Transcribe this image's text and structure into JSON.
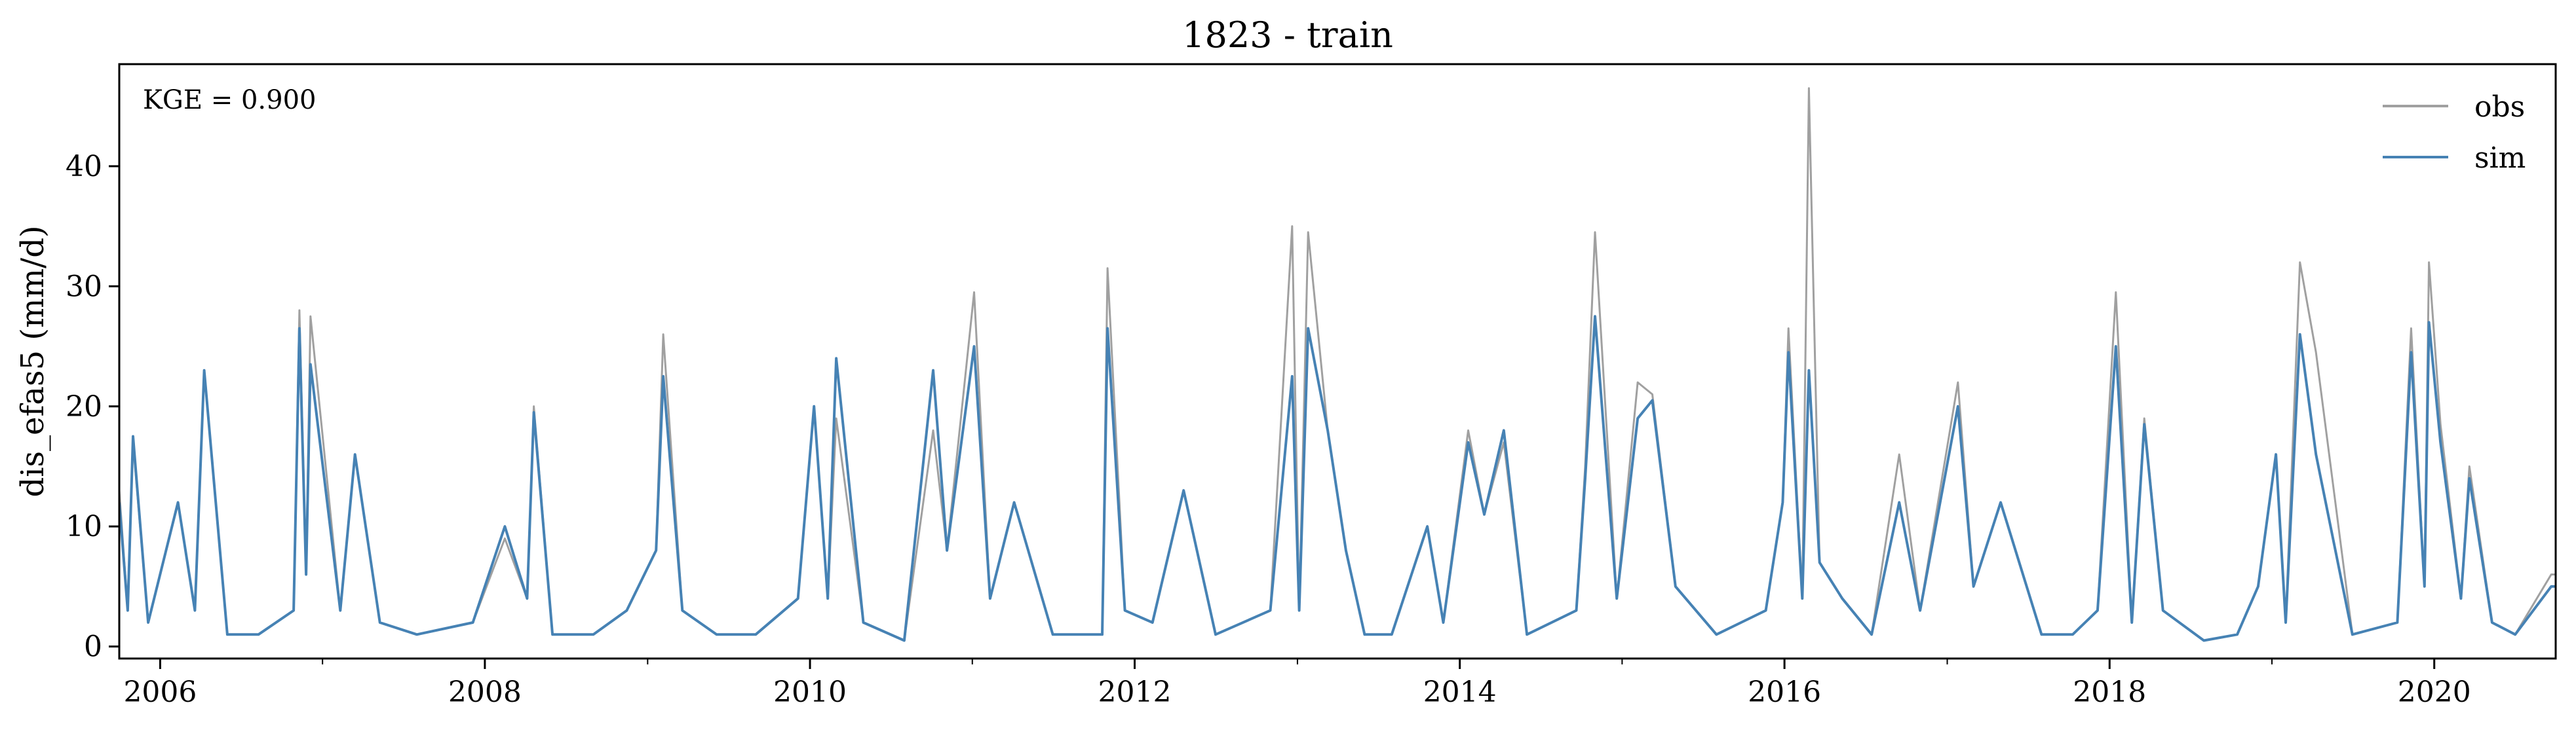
{
  "chart_data": {
    "type": "line",
    "title": "1823 - train",
    "xlabel": "",
    "ylabel": "dis_efas5 (mm/d)",
    "annotation": "KGE = 0.900",
    "legend_position": "top-right",
    "grid": false,
    "xlim": [
      "2005-10-01",
      "2020-09-30"
    ],
    "ylim": [
      -1,
      48.5
    ],
    "x_ticks": [
      "2006",
      "2008",
      "2010",
      "2012",
      "2014",
      "2016",
      "2018",
      "2020"
    ],
    "y_ticks": [
      "0",
      "10",
      "20",
      "30",
      "40"
    ],
    "y_tick_values": [
      0,
      10,
      20,
      30,
      40
    ],
    "series": [
      {
        "name": "obs",
        "color": "#a0a0a0",
        "x": [
          "2005-10-01",
          "2005-10-20",
          "2005-11-01",
          "2005-12-05",
          "2006-02-10",
          "2006-03-20",
          "2006-04-10",
          "2006-06-01",
          "2006-08-10",
          "2006-10-28",
          "2006-11-10",
          "2006-11-25",
          "2006-12-05",
          "2007-02-10",
          "2007-03-15",
          "2007-05-10",
          "2007-08-01",
          "2007-12-05",
          "2008-02-15",
          "2008-04-05",
          "2008-04-20",
          "2008-06-01",
          "2008-09-01",
          "2008-11-15",
          "2009-01-20",
          "2009-02-05",
          "2009-03-20",
          "2009-06-05",
          "2009-09-01",
          "2009-12-05",
          "2010-01-10",
          "2010-02-10",
          "2010-03-01",
          "2010-05-01",
          "2010-08-01",
          "2010-10-05",
          "2010-11-05",
          "2011-01-05",
          "2011-02-10",
          "2011-04-05",
          "2011-07-01",
          "2011-10-20",
          "2011-11-01",
          "2011-12-10",
          "2012-02-10",
          "2012-04-20",
          "2012-07-01",
          "2012-11-01",
          "2012-12-20",
          "2013-01-05",
          "2013-01-25",
          "2013-03-10",
          "2013-04-20",
          "2013-06-01",
          "2013-08-01",
          "2013-10-20",
          "2013-11-25",
          "2014-01-20",
          "2014-02-25",
          "2014-04-10",
          "2014-06-01",
          "2014-09-20",
          "2014-10-10",
          "2014-11-01",
          "2014-12-20",
          "2015-02-05",
          "2015-03-10",
          "2015-05-01",
          "2015-08-01",
          "2015-11-20",
          "2015-12-28",
          "2016-01-10",
          "2016-02-10",
          "2016-02-25",
          "2016-03-20",
          "2016-05-10",
          "2016-07-15",
          "2016-09-15",
          "2016-11-01",
          "2017-01-25",
          "2017-03-01",
          "2017-05-01",
          "2017-08-01",
          "2017-10-10",
          "2017-12-05",
          "2018-01-15",
          "2018-02-20",
          "2018-03-20",
          "2018-05-01",
          "2018-08-01",
          "2018-10-15",
          "2018-12-01",
          "2019-01-10",
          "2019-02-01",
          "2019-03-05",
          "2019-04-10",
          "2019-07-01",
          "2019-10-10",
          "2019-11-10",
          "2019-12-10",
          "2019-12-20",
          "2020-01-15",
          "2020-03-01",
          "2020-03-20",
          "2020-05-10",
          "2020-07-01",
          "2020-09-20",
          "2020-09-30"
        ],
        "values": [
          13,
          3,
          17,
          2,
          12,
          3,
          23,
          1,
          1,
          3,
          28,
          6,
          27.5,
          3,
          16,
          2,
          1,
          2,
          9,
          4,
          20,
          1,
          1,
          3,
          8,
          26,
          3,
          1,
          1,
          4,
          20,
          4,
          19,
          2,
          0.5,
          18,
          8,
          29.5,
          4,
          12,
          1,
          1,
          31.5,
          3,
          2,
          13,
          1,
          3,
          35,
          3,
          34.5,
          18,
          8,
          1,
          1,
          10,
          2,
          18,
          11,
          17,
          1,
          3,
          15,
          34.5,
          4,
          22,
          21,
          5,
          1,
          3,
          12,
          26.5,
          4,
          46.5,
          7,
          4,
          1,
          16,
          3,
          22,
          5,
          12,
          1,
          1,
          3,
          29.5,
          2,
          19,
          3,
          0.5,
          1,
          5,
          16,
          2,
          32,
          24.5,
          1,
          2,
          26.5,
          5,
          32,
          18.5,
          4,
          15,
          2,
          1,
          6,
          6
        ]
      },
      {
        "name": "sim",
        "color": "#4682b4",
        "x": [
          "2005-10-01",
          "2005-10-20",
          "2005-11-01",
          "2005-12-05",
          "2006-02-10",
          "2006-03-20",
          "2006-04-10",
          "2006-06-01",
          "2006-08-10",
          "2006-10-28",
          "2006-11-10",
          "2006-11-25",
          "2006-12-05",
          "2007-02-10",
          "2007-03-15",
          "2007-05-10",
          "2007-08-01",
          "2007-12-05",
          "2008-02-15",
          "2008-04-05",
          "2008-04-20",
          "2008-06-01",
          "2008-09-01",
          "2008-11-15",
          "2009-01-20",
          "2009-02-05",
          "2009-03-20",
          "2009-06-05",
          "2009-09-01",
          "2009-12-05",
          "2010-01-10",
          "2010-02-10",
          "2010-03-01",
          "2010-05-01",
          "2010-08-01",
          "2010-10-05",
          "2010-11-05",
          "2011-01-05",
          "2011-02-10",
          "2011-04-05",
          "2011-07-01",
          "2011-10-20",
          "2011-11-01",
          "2011-12-10",
          "2012-02-10",
          "2012-04-20",
          "2012-07-01",
          "2012-11-01",
          "2012-12-20",
          "2013-01-05",
          "2013-01-25",
          "2013-03-10",
          "2013-04-20",
          "2013-06-01",
          "2013-08-01",
          "2013-10-20",
          "2013-11-25",
          "2014-01-20",
          "2014-02-25",
          "2014-04-10",
          "2014-06-01",
          "2014-09-20",
          "2014-10-10",
          "2014-11-01",
          "2014-12-20",
          "2015-02-05",
          "2015-03-10",
          "2015-05-01",
          "2015-08-01",
          "2015-11-20",
          "2015-12-28",
          "2016-01-10",
          "2016-02-10",
          "2016-02-25",
          "2016-03-20",
          "2016-05-10",
          "2016-07-15",
          "2016-09-15",
          "2016-11-01",
          "2017-01-25",
          "2017-03-01",
          "2017-05-01",
          "2017-08-01",
          "2017-10-10",
          "2017-12-05",
          "2018-01-15",
          "2018-02-20",
          "2018-03-20",
          "2018-05-01",
          "2018-08-01",
          "2018-10-15",
          "2018-12-01",
          "2019-01-10",
          "2019-02-01",
          "2019-03-05",
          "2019-04-10",
          "2019-07-01",
          "2019-10-10",
          "2019-11-10",
          "2019-12-10",
          "2019-12-20",
          "2020-01-15",
          "2020-03-01",
          "2020-03-20",
          "2020-05-10",
          "2020-07-01",
          "2020-09-20",
          "2020-09-30"
        ],
        "values": [
          12,
          3,
          17.5,
          2,
          12,
          3,
          23,
          1,
          1,
          3,
          26.5,
          6,
          23.5,
          3,
          16,
          2,
          1,
          2,
          10,
          4,
          19.5,
          1,
          1,
          3,
          8,
          22.5,
          3,
          1,
          1,
          4,
          20,
          4,
          24,
          2,
          0.5,
          23,
          8,
          25,
          4,
          12,
          1,
          1,
          26.5,
          3,
          2,
          13,
          1,
          3,
          22.5,
          3,
          26.5,
          18,
          8,
          1,
          1,
          10,
          2,
          17,
          11,
          18,
          1,
          3,
          14,
          27.5,
          4,
          19,
          20.5,
          5,
          1,
          3,
          12,
          24.5,
          4,
          23,
          7,
          4,
          1,
          12,
          3,
          20,
          5,
          12,
          1,
          1,
          3,
          25,
          2,
          18.5,
          3,
          0.5,
          1,
          5,
          16,
          2,
          26,
          16,
          1,
          2,
          24.5,
          5,
          27,
          17,
          4,
          14,
          2,
          1,
          5,
          5
        ]
      }
    ]
  }
}
